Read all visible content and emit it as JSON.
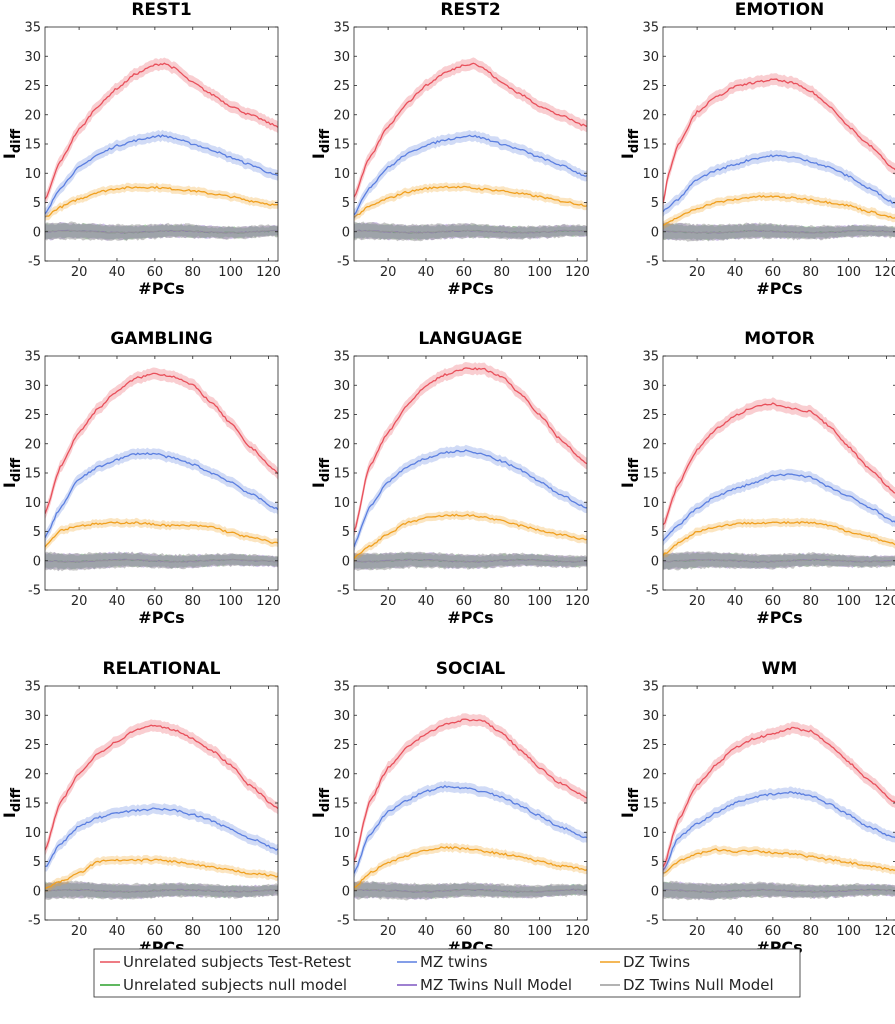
{
  "chart_data": {
    "type": "line",
    "xlabel": "#PCs",
    "ylabel": "I",
    "ylabel_sub": "diff",
    "xlim": [
      2,
      125
    ],
    "ylim": [
      -5,
      35
    ],
    "xticks": [
      20,
      40,
      60,
      80,
      100,
      120
    ],
    "yticks": [
      -5,
      0,
      5,
      10,
      15,
      20,
      25,
      30,
      35
    ],
    "grid": false,
    "legend_position": "bottom",
    "legend": [
      {
        "name": "Unrelated subjects Test-Retest",
        "color": "#e8505b"
      },
      {
        "name": "MZ twins",
        "color": "#5b7fe0"
      },
      {
        "name": "DZ Twins",
        "color": "#f0a020"
      },
      {
        "name": "Unrelated subjects null model",
        "color": "#2ca02c"
      },
      {
        "name": "MZ Twins Null Model",
        "color": "#7e57c2"
      },
      {
        "name": "DZ Twins Null Model",
        "color": "#9a9a9a"
      }
    ],
    "colors": {
      "test_retest": "#e8505b",
      "mz": "#5b7fe0",
      "dz": "#f0a020",
      "null_unrelated": "#2ca02c",
      "null_mz": "#7e57c2",
      "null_dz": "#9a9a9a"
    },
    "panels": [
      {
        "title": "REST1",
        "series": {
          "test_retest": {
            "x": [
              2,
              10,
              20,
              30,
              40,
              50,
              60,
              65,
              70,
              80,
              90,
              100,
              110,
              125
            ],
            "y": [
              5.5,
              12,
              17.5,
              21.5,
              24.5,
              27,
              28.5,
              28.8,
              28,
              25.5,
              23.5,
              21.5,
              20,
              18
            ]
          },
          "mz": {
            "x": [
              2,
              10,
              20,
              30,
              40,
              50,
              60,
              65,
              70,
              80,
              90,
              100,
              110,
              125
            ],
            "y": [
              3,
              7.5,
              11,
              13.2,
              14.7,
              15.6,
              16.3,
              16.4,
              16,
              15,
              14,
              12.7,
              11.5,
              9.5
            ]
          },
          "dz": {
            "x": [
              2,
              10,
              20,
              30,
              40,
              50,
              60,
              70,
              80,
              90,
              100,
              110,
              125
            ],
            "y": [
              2.5,
              4.2,
              5.6,
              6.8,
              7.4,
              7.6,
              7.6,
              7.3,
              7,
              6.5,
              6,
              5.3,
              4.5
            ]
          }
        }
      },
      {
        "title": "REST2",
        "series": {
          "test_retest": {
            "x": [
              2,
              10,
              20,
              30,
              40,
              50,
              60,
              65,
              70,
              80,
              90,
              100,
              110,
              125
            ],
            "y": [
              6,
              12.5,
              18,
              22,
              25,
              27.2,
              28.5,
              28.8,
              28,
              25.5,
              23.5,
              21.5,
              20,
              18
            ]
          },
          "mz": {
            "x": [
              2,
              10,
              20,
              30,
              40,
              50,
              60,
              65,
              70,
              80,
              90,
              100,
              110,
              125
            ],
            "y": [
              3,
              7.5,
              11,
              13.3,
              14.8,
              15.7,
              16.3,
              16.4,
              16,
              15,
              14,
              12.7,
              11.5,
              9.5
            ]
          },
          "dz": {
            "x": [
              2,
              10,
              20,
              30,
              40,
              50,
              60,
              70,
              80,
              90,
              100,
              110,
              125
            ],
            "y": [
              2.5,
              4.3,
              5.7,
              6.8,
              7.4,
              7.7,
              7.6,
              7.3,
              7,
              6.5,
              6,
              5.3,
              4.5
            ]
          }
        }
      },
      {
        "title": "EMOTION",
        "series": {
          "test_retest": {
            "x": [
              2,
              5,
              10,
              20,
              30,
              40,
              50,
              60,
              70,
              80,
              90,
              100,
              110,
              125
            ],
            "y": [
              5,
              10,
              15,
              20.5,
              23,
              24.8,
              25.5,
              26,
              25.5,
              24,
              21.5,
              18,
              15,
              10.5
            ]
          },
          "mz": {
            "x": [
              2,
              10,
              20,
              30,
              40,
              50,
              60,
              70,
              80,
              90,
              100,
              110,
              125
            ],
            "y": [
              3.5,
              5.5,
              9,
              10.5,
              11.5,
              12.5,
              13,
              12.8,
              12,
              11,
              9.5,
              7.5,
              4.8
            ]
          },
          "dz": {
            "x": [
              2,
              10,
              20,
              30,
              40,
              50,
              60,
              70,
              80,
              90,
              100,
              110,
              125
            ],
            "y": [
              1,
              2.5,
              4,
              5,
              5.5,
              6,
              6,
              5.8,
              5.5,
              5,
              4.5,
              3.5,
              2.3
            ]
          }
        }
      },
      {
        "title": "GAMBLING",
        "series": {
          "test_retest": {
            "x": [
              2,
              10,
              20,
              30,
              40,
              50,
              60,
              70,
              80,
              90,
              100,
              110,
              125
            ],
            "y": [
              8,
              16,
              22,
              26,
              29,
              31.2,
              32,
              31.5,
              30,
              27,
              23.5,
              19.5,
              15
            ]
          },
          "mz": {
            "x": [
              2,
              10,
              20,
              30,
              40,
              50,
              60,
              70,
              80,
              90,
              100,
              110,
              125
            ],
            "y": [
              4,
              9,
              14,
              16,
              17.3,
              18.3,
              18.3,
              17.5,
              16.5,
              15,
              13.5,
              11.5,
              8.8
            ]
          },
          "dz": {
            "x": [
              2,
              10,
              20,
              30,
              40,
              50,
              60,
              70,
              80,
              90,
              100,
              110,
              125
            ],
            "y": [
              2.5,
              5.2,
              6,
              6.3,
              6.5,
              6.5,
              6.2,
              6,
              6,
              5.8,
              4.8,
              4,
              3
            ]
          }
        }
      },
      {
        "title": "LANGUAGE",
        "series": {
          "test_retest": {
            "x": [
              2,
              10,
              20,
              30,
              40,
              50,
              60,
              70,
              80,
              90,
              100,
              110,
              125
            ],
            "y": [
              5,
              16,
              22,
              26.5,
              30,
              31.8,
              32.8,
              32.8,
              31.5,
              28.5,
              25,
              21,
              16.5
            ]
          },
          "mz": {
            "x": [
              2,
              10,
              20,
              30,
              40,
              50,
              60,
              70,
              80,
              90,
              100,
              110,
              125
            ],
            "y": [
              2.5,
              9,
              13.5,
              16,
              17.5,
              18.5,
              18.8,
              18.2,
              17,
              15.5,
              13.5,
              11.5,
              9
            ]
          },
          "dz": {
            "x": [
              2,
              10,
              20,
              30,
              40,
              50,
              60,
              70,
              80,
              90,
              100,
              110,
              125
            ],
            "y": [
              0.5,
              2.5,
              4.5,
              6.5,
              7.3,
              7.7,
              7.8,
              7.5,
              6.8,
              6,
              5.2,
              4.5,
              3.6
            ]
          }
        }
      },
      {
        "title": "MOTOR",
        "series": {
          "test_retest": {
            "x": [
              2,
              10,
              20,
              30,
              40,
              50,
              60,
              70,
              80,
              90,
              100,
              110,
              125
            ],
            "y": [
              6,
              13,
              19,
              22.5,
              24.8,
              26.3,
              26.8,
              26,
              25.5,
              23,
              19.5,
              16,
              11.5
            ]
          },
          "mz": {
            "x": [
              2,
              10,
              20,
              30,
              40,
              50,
              60,
              70,
              80,
              90,
              100,
              110,
              125
            ],
            "y": [
              3.5,
              6,
              9,
              11,
              12.3,
              13.3,
              14.5,
              14.8,
              14.3,
              12.5,
              11,
              9.3,
              6.5
            ]
          },
          "dz": {
            "x": [
              2,
              10,
              20,
              30,
              40,
              50,
              60,
              70,
              80,
              90,
              100,
              110,
              125
            ],
            "y": [
              1,
              3,
              5,
              5.8,
              6.3,
              6.5,
              6.5,
              6.5,
              6.5,
              6,
              5,
              4.2,
              2.8
            ]
          }
        }
      },
      {
        "title": "RELATIONAL",
        "series": {
          "test_retest": {
            "x": [
              2,
              10,
              20,
              30,
              40,
              50,
              60,
              70,
              80,
              90,
              100,
              110,
              125
            ],
            "y": [
              7,
              15,
              20,
              23.5,
              25.5,
              27.5,
              28.3,
              27.5,
              26,
              24,
              21.5,
              18,
              14
            ]
          },
          "mz": {
            "x": [
              2,
              10,
              20,
              30,
              40,
              50,
              60,
              70,
              80,
              90,
              100,
              110,
              125
            ],
            "y": [
              4,
              8,
              11,
              12.5,
              13.3,
              13.7,
              14,
              13.8,
              13,
              12,
              10.5,
              9,
              7
            ]
          },
          "dz": {
            "x": [
              2,
              10,
              20,
              30,
              40,
              50,
              60,
              70,
              80,
              90,
              100,
              110,
              125
            ],
            "y": [
              0.5,
              1.5,
              3,
              5,
              5.2,
              5.2,
              5.3,
              5,
              4.5,
              4,
              3.5,
              3,
              2.5
            ]
          }
        }
      },
      {
        "title": "SOCIAL",
        "series": {
          "test_retest": {
            "x": [
              2,
              10,
              20,
              30,
              40,
              50,
              60,
              70,
              80,
              90,
              100,
              110,
              125
            ],
            "y": [
              5,
              15,
              21,
              24.5,
              26.8,
              28.5,
              29.2,
              29,
              27,
              24,
              21,
              18.5,
              16
            ]
          },
          "mz": {
            "x": [
              2,
              10,
              20,
              30,
              40,
              50,
              60,
              70,
              80,
              90,
              100,
              110,
              125
            ],
            "y": [
              3,
              9.5,
              13.5,
              15.5,
              17,
              17.8,
              17.5,
              17,
              16,
              14.5,
              12.8,
              11,
              9
            ]
          },
          "dz": {
            "x": [
              2,
              10,
              20,
              30,
              40,
              50,
              60,
              70,
              80,
              90,
              100,
              110,
              125
            ],
            "y": [
              0.5,
              3,
              4.8,
              6,
              7,
              7.4,
              7.2,
              6.8,
              6.3,
              5.8,
              5,
              4.3,
              3.6
            ]
          }
        }
      },
      {
        "title": "WM",
        "series": {
          "test_retest": {
            "x": [
              2,
              10,
              20,
              30,
              40,
              50,
              60,
              70,
              80,
              90,
              100,
              110,
              125
            ],
            "y": [
              4,
              12,
              18,
              21.5,
              24.5,
              26,
              26.8,
              27.8,
              27.3,
              25,
              22,
              19,
              15
            ]
          },
          "mz": {
            "x": [
              2,
              10,
              20,
              30,
              40,
              50,
              60,
              70,
              80,
              90,
              100,
              110,
              125
            ],
            "y": [
              3.5,
              9,
              11.5,
              13.3,
              15,
              16,
              16.5,
              16.8,
              16.3,
              14.8,
              13,
              11,
              9
            ]
          },
          "dz": {
            "x": [
              2,
              10,
              20,
              30,
              40,
              50,
              60,
              70,
              80,
              90,
              100,
              110,
              125
            ],
            "y": [
              3,
              5,
              6.3,
              7,
              6.7,
              6.9,
              6.5,
              6.3,
              5.8,
              5.3,
              4.8,
              4.2,
              3.5
            ]
          }
        }
      }
    ]
  }
}
